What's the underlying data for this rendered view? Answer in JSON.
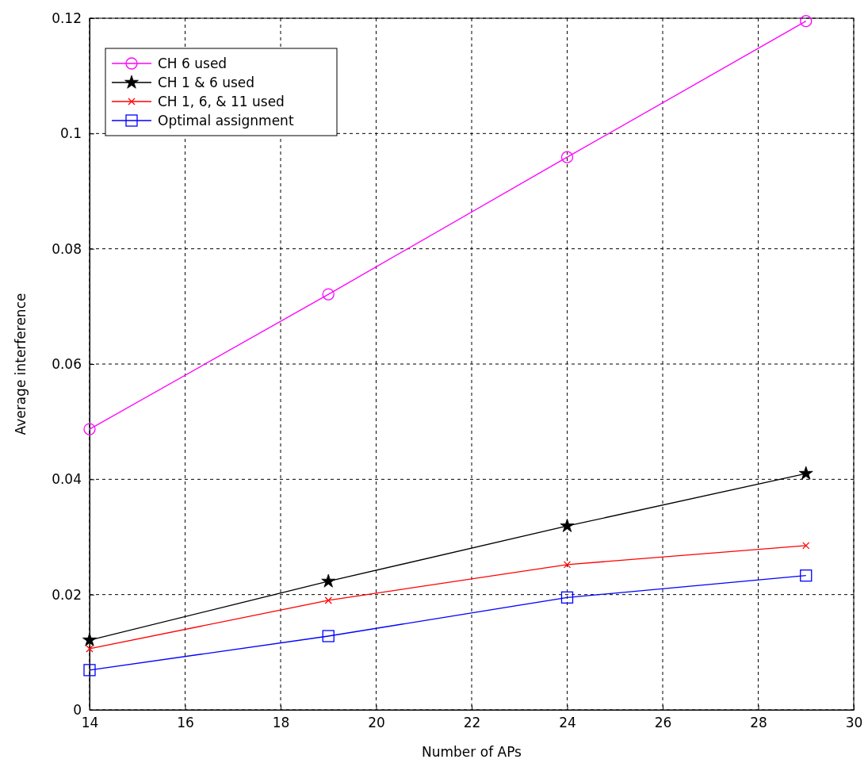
{
  "chart_data": {
    "type": "line",
    "xlabel": "Number of APs",
    "ylabel": "Average interference",
    "x": [
      14,
      19,
      24,
      29
    ],
    "series": [
      {
        "name": "CH 6 used",
        "color": "#ff00ff",
        "marker": "circle",
        "values": [
          0.0487,
          0.0721,
          0.0959,
          0.1195
        ]
      },
      {
        "name": "CH 1 & 6 used",
        "color": "#000000",
        "marker": "star",
        "values": [
          0.0121,
          0.0223,
          0.0319,
          0.041
        ]
      },
      {
        "name": "CH 1, 6, & 11 used",
        "color": "#ff0000",
        "marker": "cross",
        "values": [
          0.0106,
          0.019,
          0.0252,
          0.0285
        ]
      },
      {
        "name": "Optimal assignment",
        "color": "#0000ff",
        "marker": "square",
        "values": [
          0.0069,
          0.0128,
          0.0195,
          0.0233
        ]
      }
    ],
    "xlim": [
      14,
      30
    ],
    "xticks": [
      14,
      16,
      18,
      20,
      22,
      24,
      26,
      28,
      30
    ],
    "ylim": [
      0,
      0.12
    ],
    "yticks": [
      0,
      0.02,
      0.04,
      0.06,
      0.08,
      0.1,
      0.12
    ],
    "grid": true,
    "legend": "top left",
    "line_style": "solid"
  }
}
